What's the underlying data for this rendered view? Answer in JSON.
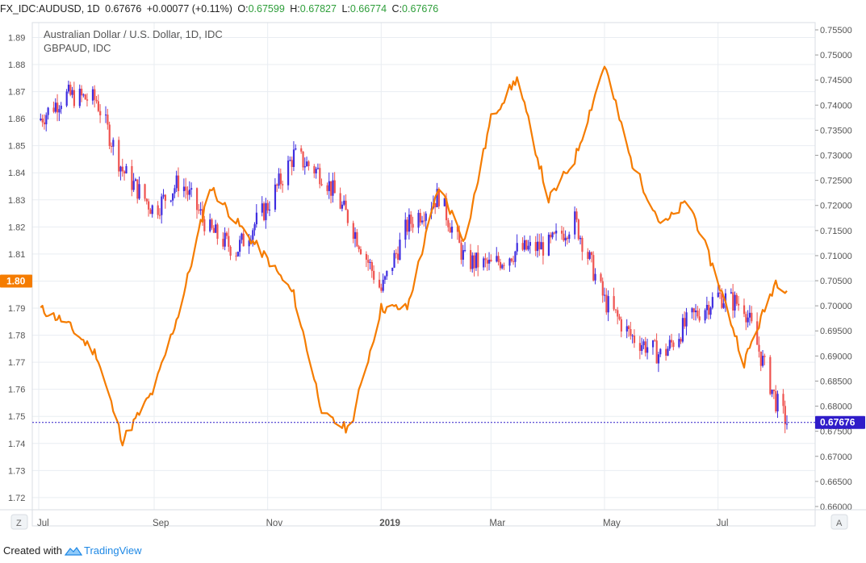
{
  "header": {
    "symbol": "FX_IDC:AUDUSD, 1D",
    "last": "0.67676",
    "change": "+0.00077 (+0.11%)",
    "o_label": "O:",
    "o_value": "0.67599",
    "h_label": "H:",
    "h_value": "0.67827",
    "l_label": "L:",
    "l_value": "0.66774",
    "c_label": "C:",
    "c_value": "0.67676"
  },
  "legend": {
    "line1": "Australian Dollar / U.S. Dollar, 1D, IDC",
    "line2": "GBPAUD, IDC"
  },
  "left_axis": {
    "ticks": [
      "1.89",
      "1.88",
      "1.87",
      "1.86",
      "1.85",
      "1.84",
      "1.83",
      "1.82",
      "1.81",
      "1.80",
      "1.79",
      "1.78",
      "1.77",
      "1.76",
      "1.75",
      "1.74",
      "1.73",
      "1.72"
    ],
    "current_label": "1.80",
    "current_value": 1.8,
    "range": [
      1.7155,
      1.8955
    ]
  },
  "right_axis": {
    "ticks": [
      "0.75500",
      "0.75000",
      "0.74500",
      "0.74000",
      "0.73500",
      "0.73000",
      "0.72500",
      "0.72000",
      "0.71500",
      "0.71000",
      "0.70500",
      "0.70000",
      "0.69500",
      "0.69000",
      "0.68500",
      "0.68000",
      "0.67500",
      "0.67000",
      "0.66500",
      "0.66000"
    ],
    "current_label": "0.67676",
    "current_value": 0.67676,
    "range": [
      0.65935,
      0.75645
    ]
  },
  "time_axis": {
    "labels": [
      "Jul",
      "Sep",
      "Nov",
      "2019",
      "Mar",
      "May",
      "Jul"
    ],
    "bold": [
      false,
      false,
      false,
      true,
      false,
      false,
      false
    ],
    "start_label": "Z",
    "end_label": "A"
  },
  "footer": {
    "created": "Created with",
    "brand": "TradingView"
  },
  "colors": {
    "up": "#3f2ee0",
    "down": "#ef5350",
    "gbpaud": "#f57c00",
    "price_line": "#2f1cc9",
    "left_badge": "#f57c00",
    "right_badge": "#2f1cc9",
    "grid": "#e9edf2"
  },
  "chart_data": {
    "type": "line",
    "note_series": [
      {
        "name": "AUDUSD (candles, close)",
        "axis": "right",
        "x": [
          "2018-07-01",
          "2018-07-15",
          "2018-08-01",
          "2018-08-15",
          "2018-09-01",
          "2018-09-15",
          "2018-10-01",
          "2018-10-15",
          "2018-11-01",
          "2018-11-15",
          "2018-12-01",
          "2018-12-15",
          "2019-01-01",
          "2019-01-15",
          "2019-02-01",
          "2019-02-15",
          "2019-03-01",
          "2019-03-15",
          "2019-04-01",
          "2019-04-15",
          "2019-05-01",
          "2019-05-15",
          "2019-06-01",
          "2019-06-15",
          "2019-07-01",
          "2019-07-15",
          "2019-08-01",
          "2019-08-07"
        ],
        "values": [
          0.737,
          0.742,
          0.741,
          0.727,
          0.719,
          0.725,
          0.715,
          0.711,
          0.72,
          0.73,
          0.726,
          0.717,
          0.703,
          0.716,
          0.722,
          0.709,
          0.708,
          0.711,
          0.712,
          0.717,
          0.701,
          0.694,
          0.69,
          0.697,
          0.702,
          0.7,
          0.681,
          0.6768
        ]
      },
      {
        "name": "GBPAUD",
        "axis": "left",
        "x": [
          "2018-07-01",
          "2018-07-15",
          "2018-08-01",
          "2018-08-15",
          "2018-09-01",
          "2018-09-15",
          "2018-10-01",
          "2018-10-15",
          "2018-11-01",
          "2018-11-15",
          "2018-12-01",
          "2018-12-15",
          "2019-01-01",
          "2019-01-15",
          "2019-02-01",
          "2019-02-15",
          "2019-03-01",
          "2019-03-15",
          "2019-04-01",
          "2019-04-15",
          "2019-05-01",
          "2019-05-15",
          "2019-06-01",
          "2019-06-15",
          "2019-07-01",
          "2019-07-15",
          "2019-08-01",
          "2019-08-07"
        ],
        "values": [
          1.79,
          1.785,
          1.773,
          1.741,
          1.76,
          1.79,
          1.835,
          1.822,
          1.808,
          1.795,
          1.75,
          1.745,
          1.79,
          1.79,
          1.835,
          1.815,
          1.86,
          1.875,
          1.83,
          1.845,
          1.88,
          1.845,
          1.82,
          1.83,
          1.8,
          1.77,
          1.8,
          1.797
        ]
      }
    ],
    "series": [
      {
        "name": "AUDUSD",
        "x": [
          "2018-07-01",
          "2018-07-15",
          "2018-08-01",
          "2018-08-15",
          "2018-09-01",
          "2018-09-15",
          "2018-10-01",
          "2018-10-15",
          "2018-11-01",
          "2018-11-15",
          "2018-12-01",
          "2018-12-15",
          "2019-01-01",
          "2019-01-15",
          "2019-02-01",
          "2019-02-15",
          "2019-03-01",
          "2019-03-15",
          "2019-04-01",
          "2019-04-15",
          "2019-05-01",
          "2019-05-15",
          "2019-06-01",
          "2019-06-15",
          "2019-07-01",
          "2019-07-15",
          "2019-08-01",
          "2019-08-07"
        ],
        "values": [
          0.737,
          0.742,
          0.741,
          0.727,
          0.719,
          0.725,
          0.715,
          0.711,
          0.72,
          0.73,
          0.726,
          0.717,
          0.703,
          0.716,
          0.722,
          0.709,
          0.708,
          0.711,
          0.712,
          0.717,
          0.701,
          0.694,
          0.69,
          0.697,
          0.702,
          0.7,
          0.681,
          0.6768
        ]
      },
      {
        "name": "GBPAUD",
        "x": [
          "2018-07-01",
          "2018-07-15",
          "2018-08-01",
          "2018-08-15",
          "2018-09-01",
          "2018-09-15",
          "2018-10-01",
          "2018-10-15",
          "2018-11-01",
          "2018-11-15",
          "2018-12-01",
          "2018-12-15",
          "2019-01-01",
          "2019-01-15",
          "2019-02-01",
          "2019-02-15",
          "2019-03-01",
          "2019-03-15",
          "2019-04-01",
          "2019-04-15",
          "2019-05-01",
          "2019-05-15",
          "2019-06-01",
          "2019-06-15",
          "2019-07-01",
          "2019-07-15",
          "2019-08-01",
          "2019-08-07"
        ],
        "values": [
          1.79,
          1.785,
          1.773,
          1.741,
          1.76,
          1.79,
          1.835,
          1.822,
          1.808,
          1.795,
          1.75,
          1.745,
          1.79,
          1.79,
          1.835,
          1.815,
          1.86,
          1.875,
          1.83,
          1.845,
          1.88,
          1.845,
          1.82,
          1.83,
          1.8,
          1.77,
          1.8,
          1.797
        ]
      }
    ],
    "title": "Australian Dollar / U.S. Dollar, 1D, IDC",
    "y_left_range": [
      1.7155,
      1.8955
    ],
    "y_right_range": [
      0.65935,
      0.75645
    ],
    "grid": true,
    "legend_placement": "top-left"
  }
}
